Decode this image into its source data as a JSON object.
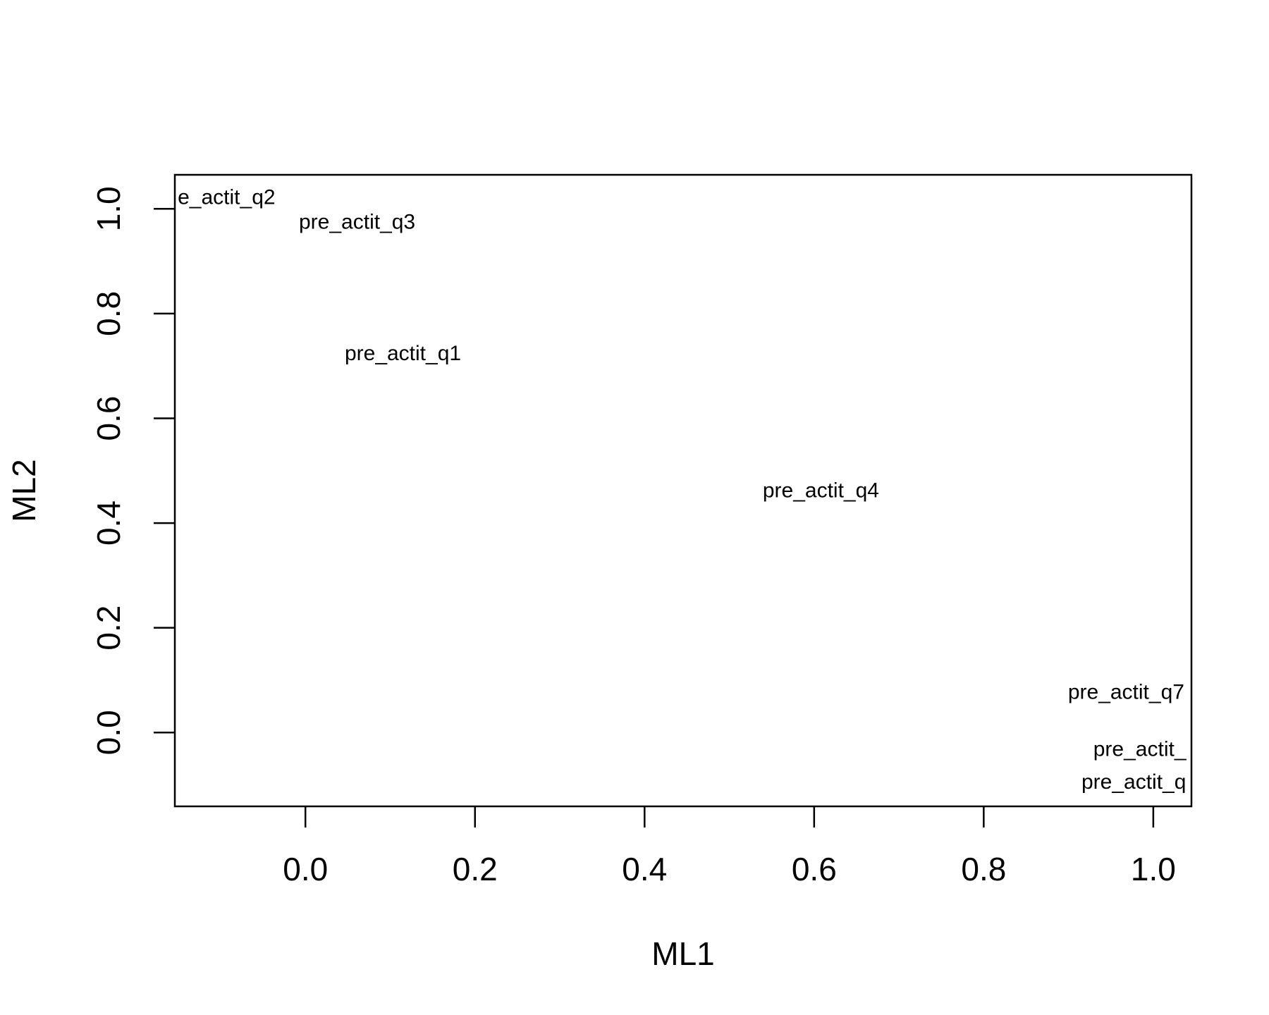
{
  "chart_data": {
    "type": "scatter",
    "x_label": "ML1",
    "y_label": "ML2",
    "points": [
      {
        "label": "e_actit_q2",
        "x": -0.093,
        "y": 1.02
      },
      {
        "label": "pre_actit_q3",
        "x": 0.061,
        "y": 0.973
      },
      {
        "label": "pre_actit_q1",
        "x": 0.115,
        "y": 0.722
      },
      {
        "label": "pre_actit_q4",
        "x": 0.608,
        "y": 0.46
      },
      {
        "label": "pre_actit_q7",
        "x": 0.968,
        "y": 0.075
      },
      {
        "label": "pre_actit_",
        "x": 0.984,
        "y": -0.034
      },
      {
        "label": "pre_actit_q",
        "x": 0.977,
        "y": -0.097
      }
    ],
    "xlim": [
      -0.154,
      1.045
    ],
    "ylim": [
      -0.141,
      1.065
    ],
    "xticks": [
      {
        "value": 0,
        "label": "0.0"
      },
      0.2,
      0.4,
      0.6,
      0.8,
      {
        "value": 1,
        "label": "1.0"
      }
    ],
    "yticks": [
      {
        "value": 0,
        "label": "0.0"
      },
      0.2,
      0.4,
      0.6,
      0.8,
      {
        "value": 1,
        "label": "1.0"
      }
    ],
    "color": "#000000"
  }
}
